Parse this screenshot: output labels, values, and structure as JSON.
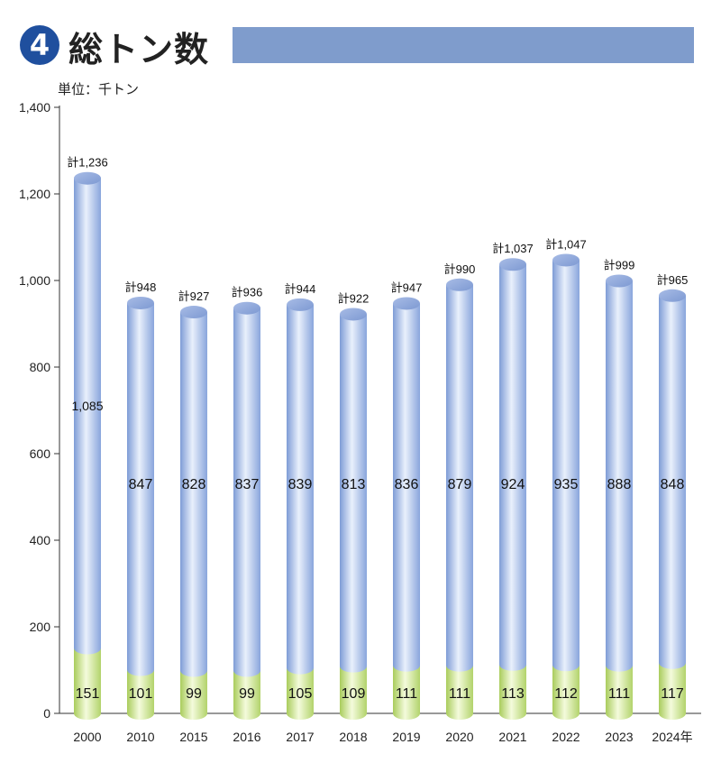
{
  "header": {
    "badge_number": "4",
    "title": "総トン数",
    "unit_label": "単位：千トン",
    "title_bar_color": "#7f9ccc",
    "badge_color": "#1f4f9e"
  },
  "chart_data": {
    "type": "bar",
    "stacked": true,
    "title": "総トン数",
    "ylabel": "単位：千トン",
    "ylim": [
      0,
      1400
    ],
    "yticks": [
      0,
      200,
      400,
      600,
      800,
      1000,
      1200,
      1400
    ],
    "ytick_labels": [
      "0",
      "200",
      "400",
      "600",
      "800",
      "1,000",
      "1,200",
      "1,400"
    ],
    "categories": [
      "2000",
      "2010",
      "2015",
      "2016",
      "2017",
      "2018",
      "2019",
      "2020",
      "2021",
      "2022",
      "2023",
      "2024年"
    ],
    "series": [
      {
        "color": "#c7e08e",
        "values": [
          151,
          101,
          99,
          99,
          105,
          109,
          111,
          111,
          113,
          112,
          111,
          117
        ],
        "labels": [
          "151",
          "101",
          "99",
          "99",
          "105",
          "109",
          "111",
          "111",
          "113",
          "112",
          "111",
          "117"
        ]
      },
      {
        "color": "#a9c0ea",
        "values": [
          1085,
          847,
          828,
          837,
          839,
          813,
          836,
          879,
          924,
          935,
          888,
          848
        ],
        "labels": [
          "1,085",
          "847",
          "828",
          "837",
          "839",
          "813",
          "836",
          "879",
          "924",
          "935",
          "888",
          "848"
        ]
      }
    ],
    "totals": [
      1236,
      948,
      927,
      936,
      944,
      922,
      947,
      990,
      1037,
      1047,
      999,
      965
    ],
    "total_labels": [
      "計1,236",
      "計948",
      "計927",
      "計936",
      "計944",
      "計922",
      "計947",
      "計990",
      "計1,037",
      "計1,047",
      "計999",
      "計965"
    ],
    "grid": false,
    "legend": "none"
  }
}
